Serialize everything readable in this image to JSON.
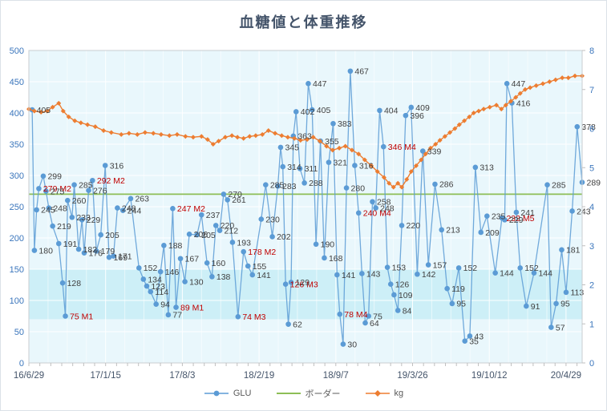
{
  "window": {
    "title": "血糖値と体重推移"
  },
  "chart_data": {
    "type": "line",
    "title": "血糖値と体重推移",
    "legend_labels": [
      "GLU",
      "ボーダー",
      "kg"
    ],
    "x_tick_labels": [
      "16/6/29",
      "17/1/15",
      "17/8/3",
      "18/2/19",
      "18/9/7",
      "19/3/26",
      "19/10/12",
      "20/4/29"
    ],
    "left_axis": {
      "min": 0,
      "max": 500,
      "step": 50,
      "ticks": [
        500,
        450,
        400,
        350,
        300,
        250,
        200,
        150,
        100,
        50,
        0
      ],
      "color": "#3b76bc"
    },
    "right_axis": {
      "min": 0,
      "max": 8,
      "step": 1,
      "ticks": [
        8,
        7,
        6,
        5,
        4,
        3,
        2,
        1,
        0
      ],
      "color": "#3b76bc"
    },
    "date_label_color": "#44546a",
    "plot_bg": "#e9f7fc",
    "band": {
      "from": 70,
      "to": 150,
      "color": "#cdeff7"
    },
    "label_colors": {
      "normal": "#404040",
      "event": "#c00000"
    },
    "border_value": 270,
    "series": [
      {
        "name": "GLU",
        "axis": "left",
        "color": "#5b9bd5",
        "marker": "circle",
        "points": [
          [
            0.006,
            405
          ],
          [
            0.01,
            180
          ],
          [
            0.014,
            245
          ],
          [
            0.018,
            279,
            "M2"
          ],
          [
            0.026,
            299
          ],
          [
            0.031,
            275
          ],
          [
            0.036,
            248
          ],
          [
            0.043,
            219
          ],
          [
            0.054,
            191
          ],
          [
            0.061,
            128
          ],
          [
            0.066,
            75,
            "M1"
          ],
          [
            0.07,
            260
          ],
          [
            0.078,
            233
          ],
          [
            0.082,
            285
          ],
          [
            0.09,
            182
          ],
          [
            0.096,
            229
          ],
          [
            0.1,
            176
          ],
          [
            0.108,
            276
          ],
          [
            0.115,
            292,
            "M2"
          ],
          [
            0.122,
            179
          ],
          [
            0.13,
            205
          ],
          [
            0.138,
            316
          ],
          [
            0.145,
            169
          ],
          [
            0.153,
            171
          ],
          [
            0.16,
            248
          ],
          [
            0.17,
            244
          ],
          [
            0.184,
            263
          ],
          [
            0.199,
            152
          ],
          [
            0.207,
            134
          ],
          [
            0.213,
            123
          ],
          [
            0.22,
            114
          ],
          [
            0.23,
            94
          ],
          [
            0.238,
            146
          ],
          [
            0.244,
            188
          ],
          [
            0.252,
            77
          ],
          [
            0.26,
            247,
            "M2"
          ],
          [
            0.266,
            89,
            "M1"
          ],
          [
            0.274,
            167
          ],
          [
            0.282,
            130
          ],
          [
            0.29,
            206
          ],
          [
            0.304,
            205
          ],
          [
            0.312,
            237
          ],
          [
            0.322,
            160
          ],
          [
            0.331,
            138
          ],
          [
            0.338,
            220
          ],
          [
            0.345,
            212
          ],
          [
            0.352,
            270
          ],
          [
            0.359,
            261
          ],
          [
            0.368,
            193
          ],
          [
            0.378,
            74,
            "M3"
          ],
          [
            0.388,
            178,
            "M2"
          ],
          [
            0.396,
            155
          ],
          [
            0.404,
            141
          ],
          [
            0.42,
            230
          ],
          [
            0.428,
            285
          ],
          [
            0.44,
            202
          ],
          [
            0.45,
            283
          ],
          [
            0.455,
            345
          ],
          [
            0.459,
            314
          ],
          [
            0.464,
            126,
            "M3"
          ],
          [
            0.469,
            62
          ],
          [
            0.474,
            129
          ],
          [
            0.478,
            363
          ],
          [
            0.483,
            402
          ],
          [
            0.49,
            311
          ],
          [
            0.498,
            288
          ],
          [
            0.505,
            447
          ],
          [
            0.512,
            405
          ],
          [
            0.519,
            190
          ],
          [
            0.527,
            355
          ],
          [
            0.534,
            168
          ],
          [
            0.542,
            321
          ],
          [
            0.55,
            383
          ],
          [
            0.557,
            141
          ],
          [
            0.562,
            78,
            "M4"
          ],
          [
            0.568,
            30
          ],
          [
            0.574,
            280
          ],
          [
            0.581,
            467
          ],
          [
            0.589,
            316
          ],
          [
            0.596,
            240,
            "M4"
          ],
          [
            0.602,
            143
          ],
          [
            0.608,
            64
          ],
          [
            0.614,
            75
          ],
          [
            0.621,
            258
          ],
          [
            0.627,
            248
          ],
          [
            0.634,
            404
          ],
          [
            0.641,
            346,
            "M4"
          ],
          [
            0.648,
            153
          ],
          [
            0.654,
            126
          ],
          [
            0.66,
            109
          ],
          [
            0.667,
            84
          ],
          [
            0.674,
            220
          ],
          [
            0.681,
            396
          ],
          [
            0.691,
            409
          ],
          [
            0.702,
            142
          ],
          [
            0.712,
            339
          ],
          [
            0.722,
            157
          ],
          [
            0.734,
            286
          ],
          [
            0.746,
            213
          ],
          [
            0.756,
            119
          ],
          [
            0.765,
            95
          ],
          [
            0.777,
            152
          ],
          [
            0.788,
            35
          ],
          [
            0.797,
            43
          ],
          [
            0.807,
            313
          ],
          [
            0.817,
            209
          ],
          [
            0.828,
            235
          ],
          [
            0.843,
            144
          ],
          [
            0.855,
            232,
            "M5"
          ],
          [
            0.86,
            229
          ],
          [
            0.864,
            447
          ],
          [
            0.873,
            416
          ],
          [
            0.881,
            241
          ],
          [
            0.888,
            152
          ],
          [
            0.899,
            91
          ],
          [
            0.913,
            144
          ],
          [
            0.937,
            285
          ],
          [
            0.944,
            57
          ],
          [
            0.953,
            95
          ],
          [
            0.963,
            181
          ],
          [
            0.971,
            113
          ],
          [
            0.982,
            243
          ],
          [
            0.991,
            378
          ],
          [
            1.0,
            289
          ]
        ]
      },
      {
        "name": "ボーダー",
        "axis": "left",
        "color": "#8dbe56",
        "marker": "none",
        "value": 270
      },
      {
        "name": "kg",
        "axis": "right",
        "color": "#ed7d31",
        "marker": "diamond",
        "points": [
          [
            0.0,
            6.5
          ],
          [
            0.01,
            6.45
          ],
          [
            0.022,
            6.42
          ],
          [
            0.033,
            6.45
          ],
          [
            0.043,
            6.55
          ],
          [
            0.054,
            6.65
          ],
          [
            0.062,
            6.45
          ],
          [
            0.072,
            6.3
          ],
          [
            0.083,
            6.2
          ],
          [
            0.094,
            6.15
          ],
          [
            0.106,
            6.1
          ],
          [
            0.12,
            6.05
          ],
          [
            0.135,
            5.95
          ],
          [
            0.149,
            5.9
          ],
          [
            0.167,
            5.85
          ],
          [
            0.181,
            5.88
          ],
          [
            0.196,
            5.85
          ],
          [
            0.21,
            5.9
          ],
          [
            0.225,
            5.88
          ],
          [
            0.239,
            5.85
          ],
          [
            0.254,
            5.82
          ],
          [
            0.268,
            5.85
          ],
          [
            0.283,
            5.8
          ],
          [
            0.297,
            5.78
          ],
          [
            0.312,
            5.8
          ],
          [
            0.323,
            5.72
          ],
          [
            0.333,
            5.6
          ],
          [
            0.343,
            5.68
          ],
          [
            0.355,
            5.78
          ],
          [
            0.367,
            5.82
          ],
          [
            0.377,
            5.78
          ],
          [
            0.388,
            5.75
          ],
          [
            0.399,
            5.8
          ],
          [
            0.41,
            5.82
          ],
          [
            0.422,
            5.85
          ],
          [
            0.433,
            5.95
          ],
          [
            0.445,
            5.88
          ],
          [
            0.457,
            5.82
          ],
          [
            0.468,
            5.78
          ],
          [
            0.48,
            5.75
          ],
          [
            0.491,
            5.7
          ],
          [
            0.503,
            5.72
          ],
          [
            0.514,
            5.78
          ],
          [
            0.526,
            5.68
          ],
          [
            0.538,
            5.55
          ],
          [
            0.549,
            5.45
          ],
          [
            0.561,
            5.5
          ],
          [
            0.572,
            5.55
          ],
          [
            0.584,
            5.45
          ],
          [
            0.596,
            5.35
          ],
          [
            0.607,
            5.2
          ],
          [
            0.619,
            5.05
          ],
          [
            0.63,
            4.9
          ],
          [
            0.642,
            4.75
          ],
          [
            0.651,
            4.6
          ],
          [
            0.659,
            4.5
          ],
          [
            0.667,
            4.6
          ],
          [
            0.674,
            4.5
          ],
          [
            0.683,
            4.7
          ],
          [
            0.691,
            4.9
          ],
          [
            0.7,
            5.05
          ],
          [
            0.709,
            5.2
          ],
          [
            0.717,
            5.35
          ],
          [
            0.726,
            5.5
          ],
          [
            0.735,
            5.6
          ],
          [
            0.743,
            5.7
          ],
          [
            0.752,
            5.8
          ],
          [
            0.761,
            5.9
          ],
          [
            0.77,
            6.0
          ],
          [
            0.778,
            6.1
          ],
          [
            0.787,
            6.2
          ],
          [
            0.796,
            6.3
          ],
          [
            0.804,
            6.4
          ],
          [
            0.813,
            6.45
          ],
          [
            0.822,
            6.5
          ],
          [
            0.833,
            6.55
          ],
          [
            0.845,
            6.6
          ],
          [
            0.854,
            6.5
          ],
          [
            0.862,
            6.6
          ],
          [
            0.871,
            6.7
          ],
          [
            0.88,
            6.8
          ],
          [
            0.888,
            6.9
          ],
          [
            0.897,
            7.0
          ],
          [
            0.906,
            7.05
          ],
          [
            0.917,
            7.1
          ],
          [
            0.929,
            7.15
          ],
          [
            0.941,
            7.2
          ],
          [
            0.952,
            7.25
          ],
          [
            0.964,
            7.3
          ],
          [
            0.975,
            7.3
          ],
          [
            0.987,
            7.35
          ],
          [
            1.0,
            7.35
          ]
        ]
      }
    ]
  }
}
